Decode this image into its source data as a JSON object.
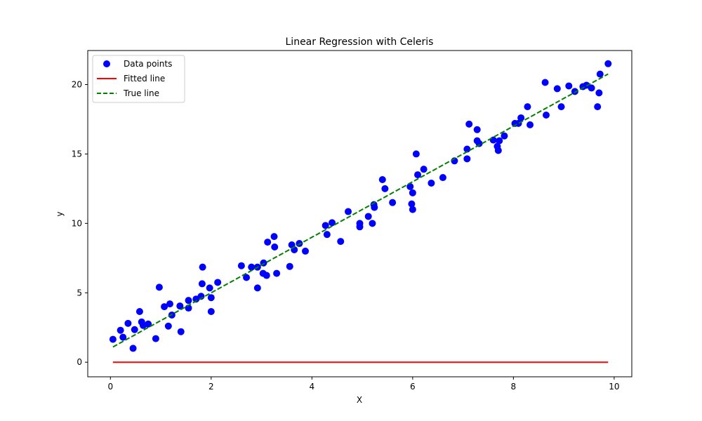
{
  "chart_data": {
    "type": "scatter",
    "title": "Linear Regression with Celeris",
    "xlabel": "X",
    "ylabel": "y",
    "xlim": [
      -0.45,
      10.35
    ],
    "ylim": [
      -1.05,
      22.45
    ],
    "xticks": [
      0,
      2,
      4,
      6,
      8,
      10
    ],
    "yticks": [
      0,
      5,
      10,
      15,
      20
    ],
    "legend_position": "top-left",
    "grid": false,
    "series": [
      {
        "name": "Data points",
        "kind": "scatter",
        "color": "#0000ff",
        "points": [
          [
            0.05,
            1.65
          ],
          [
            0.2,
            2.3
          ],
          [
            0.25,
            1.8
          ],
          [
            0.35,
            2.8
          ],
          [
            0.45,
            1.0
          ],
          [
            0.48,
            2.35
          ],
          [
            0.58,
            3.65
          ],
          [
            0.62,
            2.9
          ],
          [
            0.65,
            2.65
          ],
          [
            0.75,
            2.75
          ],
          [
            0.9,
            1.7
          ],
          [
            0.97,
            5.4
          ],
          [
            1.07,
            4.0
          ],
          [
            1.15,
            2.6
          ],
          [
            1.18,
            4.2
          ],
          [
            1.22,
            3.4
          ],
          [
            1.38,
            4.05
          ],
          [
            1.4,
            2.2
          ],
          [
            1.55,
            4.45
          ],
          [
            1.55,
            3.9
          ],
          [
            1.7,
            4.55
          ],
          [
            1.8,
            4.75
          ],
          [
            1.82,
            5.65
          ],
          [
            1.83,
            6.85
          ],
          [
            1.97,
            5.35
          ],
          [
            2.0,
            4.65
          ],
          [
            2.0,
            3.65
          ],
          [
            2.13,
            5.75
          ],
          [
            2.6,
            6.95
          ],
          [
            2.7,
            6.1
          ],
          [
            2.8,
            6.85
          ],
          [
            2.92,
            5.35
          ],
          [
            2.92,
            6.85
          ],
          [
            3.03,
            6.4
          ],
          [
            3.04,
            7.15
          ],
          [
            3.1,
            6.25
          ],
          [
            3.12,
            8.65
          ],
          [
            3.25,
            9.05
          ],
          [
            3.26,
            8.3
          ],
          [
            3.3,
            6.4
          ],
          [
            3.56,
            6.9
          ],
          [
            3.6,
            8.45
          ],
          [
            3.65,
            8.1
          ],
          [
            3.75,
            8.55
          ],
          [
            3.87,
            8.0
          ],
          [
            4.27,
            9.85
          ],
          [
            4.3,
            9.2
          ],
          [
            4.4,
            10.05
          ],
          [
            4.57,
            8.7
          ],
          [
            4.72,
            10.85
          ],
          [
            4.95,
            10.0
          ],
          [
            4.95,
            9.75
          ],
          [
            5.12,
            10.5
          ],
          [
            5.2,
            10.0
          ],
          [
            5.23,
            11.35
          ],
          [
            5.24,
            11.15
          ],
          [
            5.4,
            13.15
          ],
          [
            5.45,
            12.5
          ],
          [
            5.6,
            11.5
          ],
          [
            5.95,
            12.65
          ],
          [
            5.98,
            11.4
          ],
          [
            6.0,
            11.0
          ],
          [
            6.0,
            12.2
          ],
          [
            6.07,
            15.0
          ],
          [
            6.1,
            13.5
          ],
          [
            6.22,
            13.9
          ],
          [
            6.37,
            12.9
          ],
          [
            6.6,
            13.3
          ],
          [
            6.83,
            14.5
          ],
          [
            7.08,
            15.35
          ],
          [
            7.08,
            14.65
          ],
          [
            7.12,
            17.15
          ],
          [
            7.28,
            16.75
          ],
          [
            7.28,
            15.95
          ],
          [
            7.32,
            15.75
          ],
          [
            7.6,
            16.0
          ],
          [
            7.68,
            15.55
          ],
          [
            7.7,
            15.25
          ],
          [
            7.72,
            15.95
          ],
          [
            7.82,
            16.3
          ],
          [
            8.03,
            17.2
          ],
          [
            8.1,
            17.2
          ],
          [
            8.15,
            17.6
          ],
          [
            8.28,
            18.4
          ],
          [
            8.33,
            17.1
          ],
          [
            8.63,
            20.15
          ],
          [
            8.65,
            17.8
          ],
          [
            8.87,
            19.7
          ],
          [
            8.95,
            18.4
          ],
          [
            9.1,
            19.9
          ],
          [
            9.22,
            19.5
          ],
          [
            9.38,
            19.85
          ],
          [
            9.45,
            19.95
          ],
          [
            9.55,
            19.75
          ],
          [
            9.67,
            18.4
          ],
          [
            9.7,
            19.4
          ],
          [
            9.72,
            20.75
          ],
          [
            9.88,
            21.5
          ]
        ]
      },
      {
        "name": "Fitted line",
        "kind": "line",
        "color": "#ff0000",
        "dash": "solid",
        "x": [
          0.05,
          9.88
        ],
        "y": [
          0,
          0
        ]
      },
      {
        "name": "True line",
        "kind": "line",
        "color": "#008000",
        "dash": "dashed",
        "x": [
          0.05,
          9.88
        ],
        "y": [
          1.1,
          20.76
        ]
      }
    ]
  }
}
